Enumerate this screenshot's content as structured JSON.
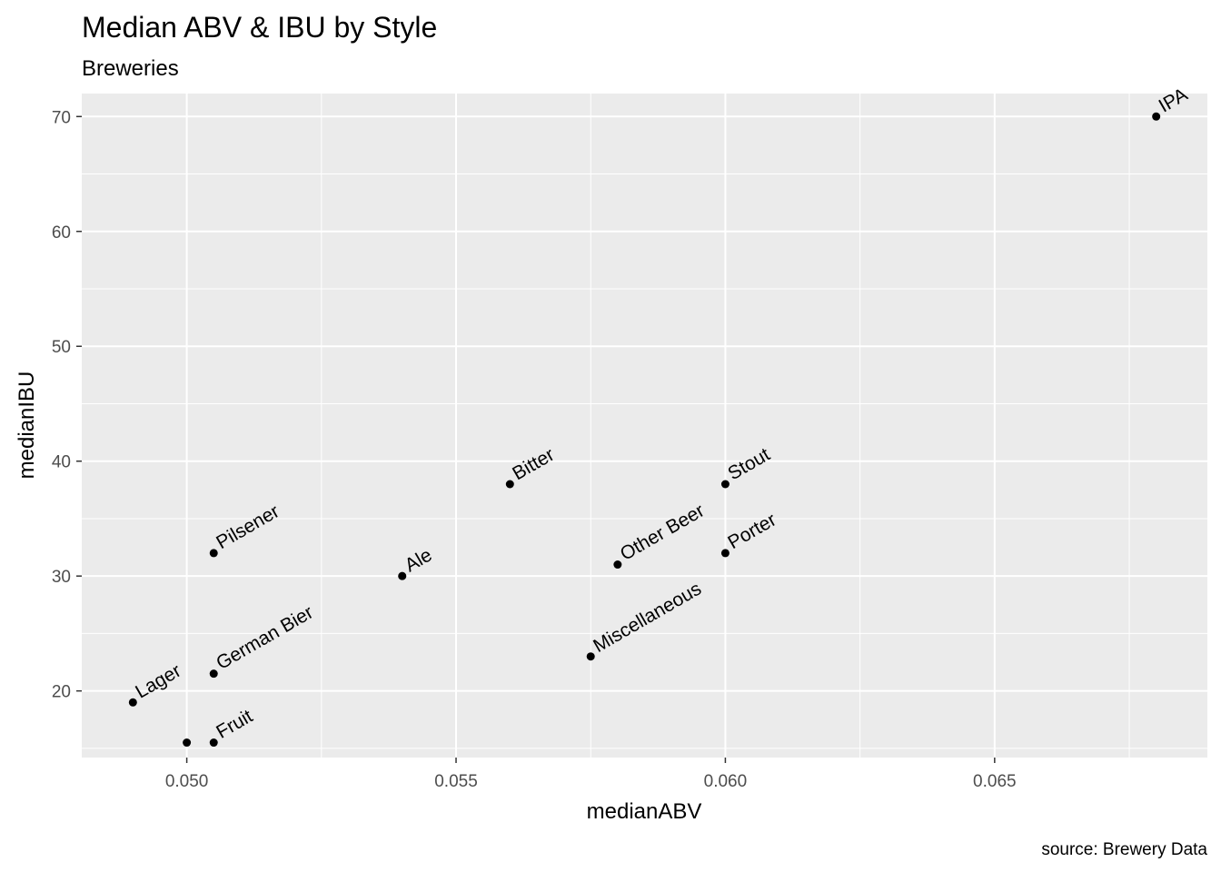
{
  "chart_data": {
    "type": "scatter",
    "title": "Median ABV & IBU by Style",
    "subtitle": "Breweries",
    "xlabel": "medianABV",
    "ylabel": "medianIBU",
    "caption": "source: Brewery Data",
    "xlim": [
      0.04805,
      0.06895
    ],
    "ylim": [
      14.2,
      72.0
    ],
    "x_ticks": [
      0.05,
      0.055,
      0.06,
      0.065
    ],
    "x_tick_labels": [
      "0.050",
      "0.055",
      "0.060",
      "0.065"
    ],
    "y_ticks": [
      20,
      30,
      40,
      50,
      60,
      70
    ],
    "y_tick_labels": [
      "20",
      "30",
      "40",
      "50",
      "60",
      "70"
    ],
    "grid": true,
    "panel_background": "#ebebeb",
    "grid_color": "#ffffff",
    "point_color": "#000000",
    "points": [
      {
        "label": "IPA",
        "x": 0.068,
        "y": 70
      },
      {
        "label": "Bitter",
        "x": 0.056,
        "y": 38
      },
      {
        "label": "Stout",
        "x": 0.06,
        "y": 38
      },
      {
        "label": "Pilsener",
        "x": 0.0505,
        "y": 32
      },
      {
        "label": "Porter",
        "x": 0.06,
        "y": 32
      },
      {
        "label": "Other Beer",
        "x": 0.058,
        "y": 31
      },
      {
        "label": "Ale",
        "x": 0.054,
        "y": 30
      },
      {
        "label": "Miscellaneous",
        "x": 0.0575,
        "y": 23
      },
      {
        "label": "German Bier",
        "x": 0.0505,
        "y": 21.5
      },
      {
        "label": "Lager",
        "x": 0.049,
        "y": 19
      },
      {
        "label": "Fruit",
        "x": 0.0505,
        "y": 15.5
      },
      {
        "label": "",
        "x": 0.05,
        "y": 15.5
      }
    ]
  }
}
